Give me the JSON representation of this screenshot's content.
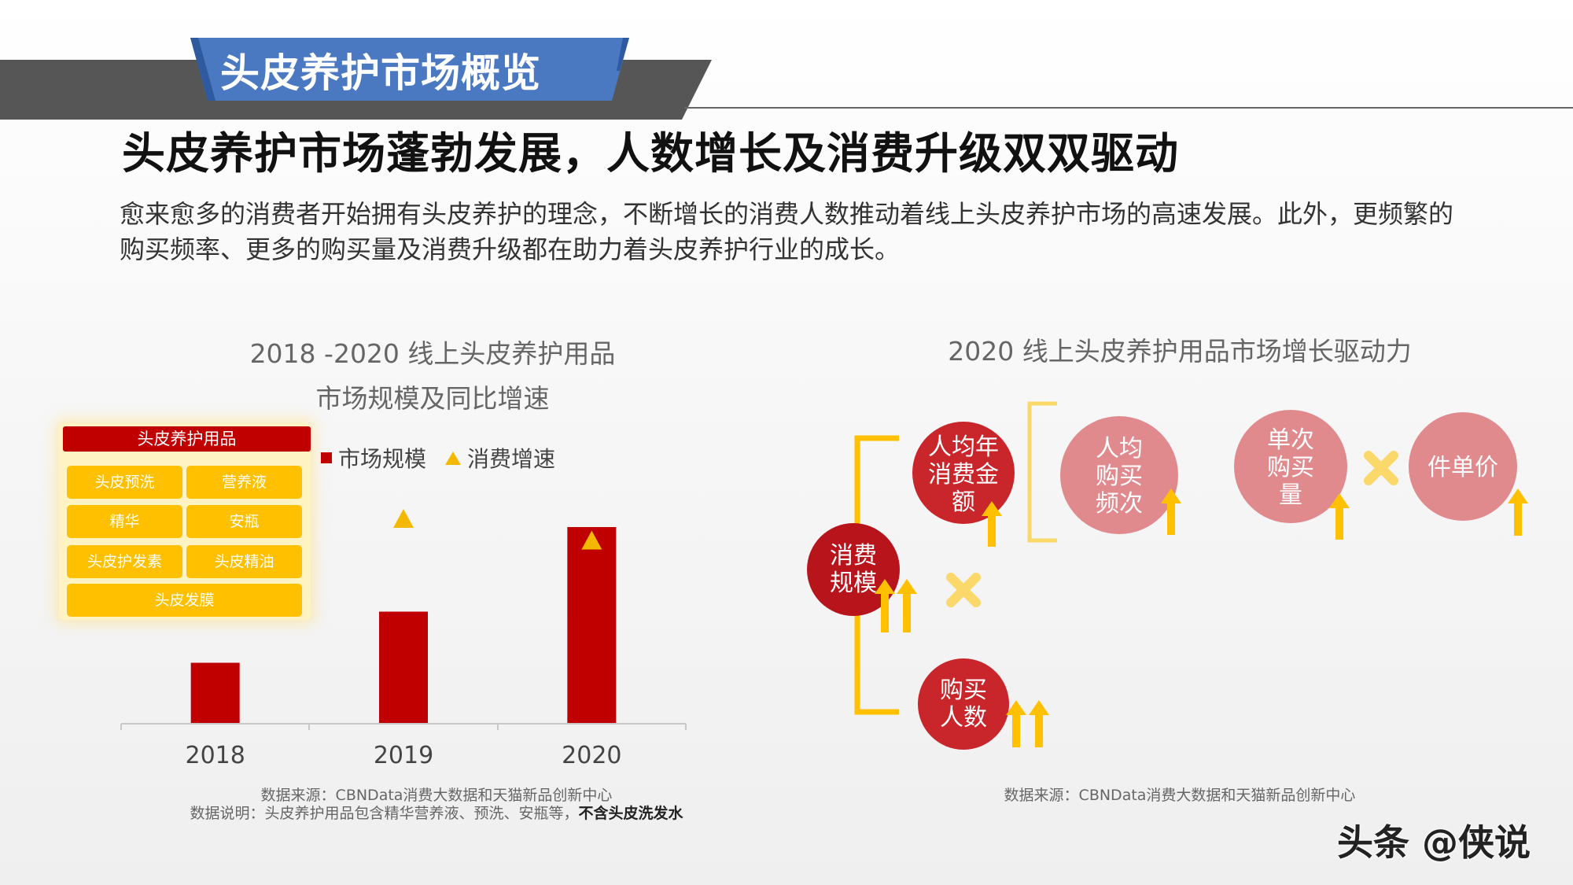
{
  "section_title": "头皮养护市场概览",
  "headline": "头皮养护市场蓬勃发展，人数增长及消费升级双双驱动",
  "intro": "愈来愈多的消费者开始拥有头皮养护的理念，不断增长的消费人数推动着线上头皮养护市场的高速发展。此外，更频繁的购买频率、更多的购买量及消费升级都在助力着头皮养护行业的成长。",
  "left_chart": {
    "title_line1": "2018 -2020 线上头皮养护用品",
    "title_line2": "市场规模及同比增速",
    "legend_bar": "市场规模",
    "legend_marker": "消费增速",
    "category_header": "头皮养护用品",
    "category_items": [
      "头皮预洗",
      "营养液",
      "精华",
      "安瓶",
      "头皮护发素",
      "头皮精油",
      "头皮发膜"
    ],
    "source_line1": "数据来源：CBNData消费大数据和天猫新品创新中心",
    "source_line2": "数据说明：头皮养护用品包含精华营养液、预洗、安瓶等，",
    "source_line2_bold": "不含头皮洗发水"
  },
  "chart_data": {
    "type": "bar",
    "categories": [
      "2018",
      "2019",
      "2020"
    ],
    "series": [
      {
        "name": "市场规模",
        "type": "bar",
        "values": [
          0.31,
          0.57,
          1.0
        ]
      },
      {
        "name": "消费增速",
        "type": "marker",
        "values": [
          null,
          1.04,
          0.93
        ]
      }
    ],
    "notes": "Axis unlabeled; values are relative heights normalized to the 2020 bar.",
    "ylim": [
      0,
      1.1
    ],
    "legend_position": "top",
    "grid": false,
    "colors": {
      "bar": "#c00000",
      "marker": "#f5b800"
    }
  },
  "right_diagram": {
    "title": "2020 线上头皮养护用品市场增长驱动力",
    "nodes": {
      "scale": [
        "消费",
        "规模"
      ],
      "spend": [
        "人均年",
        "消费金",
        "额"
      ],
      "buyers": [
        "购买",
        "人数"
      ],
      "frequency": [
        "人均",
        "购买",
        "频次"
      ],
      "quantity": [
        "单次",
        "购买",
        "量"
      ],
      "price": [
        "件单价"
      ]
    },
    "source": "数据来源：CBNData消费大数据和天猫新品创新中心"
  },
  "watermark": "头条 @侠说",
  "colors": {
    "red": "#c00000",
    "dark_red": "#b8141b",
    "pink": "#e08a8e",
    "yellow": "#ffc000",
    "light_yellow": "#fbd86a",
    "banner_blue": "#4a79c2",
    "banner_gray": "#565656"
  }
}
